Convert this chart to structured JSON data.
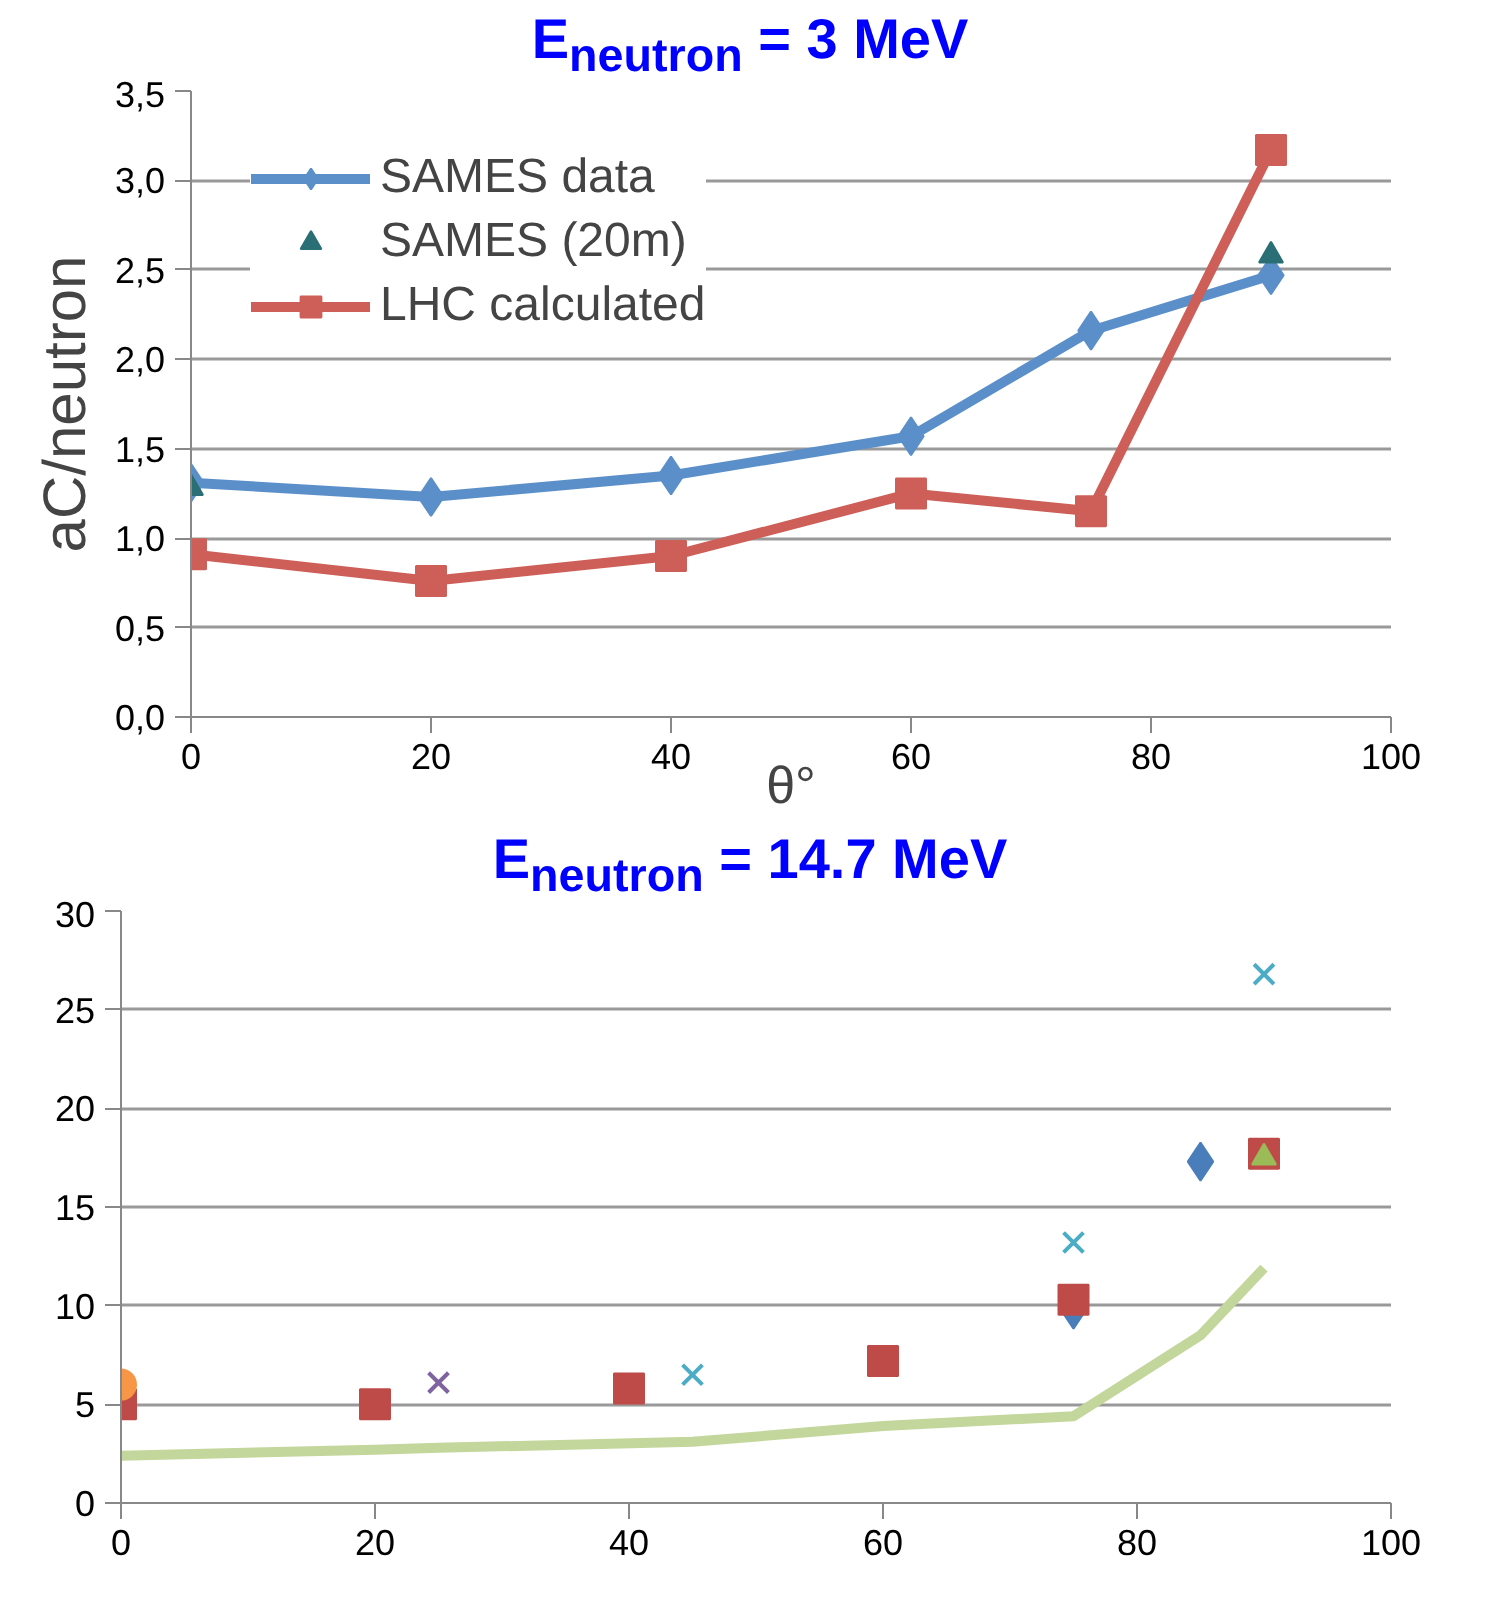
{
  "chart_data": [
    {
      "type": "line",
      "title": "E$_{neutron}$ = 3 MeV",
      "xlabel": "θ°",
      "ylabel": "aC/neutron",
      "xlim": [
        0,
        100
      ],
      "xticks": [
        0,
        20,
        40,
        60,
        80,
        100
      ],
      "ylim": [
        0,
        3.5
      ],
      "yticks": [
        {
          "value": 0,
          "label": "0,0"
        },
        {
          "value": 0.5,
          "label": "0,5"
        },
        {
          "value": 1,
          "label": "1,0"
        },
        {
          "value": 1.5,
          "label": "1,5"
        },
        {
          "value": 2,
          "label": "2,0"
        },
        {
          "value": 2.5,
          "label": "2,5"
        },
        {
          "value": 3,
          "label": "3,0"
        },
        {
          "value": 3.5,
          "label": "3,5"
        }
      ],
      "grid": "y",
      "legend": "top left",
      "series": [
        {
          "name": "SAMES data",
          "marker": "diamond",
          "color": "#5b8fc9",
          "x": [
            0,
            20,
            40,
            60,
            75,
            90
          ],
          "values": [
            1.31,
            1.23,
            1.35,
            1.57,
            2.16,
            2.47
          ]
        },
        {
          "name": "SAMES (20m)",
          "type": "scatter",
          "marker": "triangle",
          "color": "#2a6f75",
          "x": [
            0,
            90
          ],
          "values": [
            1.28,
            2.58
          ]
        },
        {
          "name": "LHC calculated",
          "marker": "square",
          "color": "#cd5f58",
          "x": [
            0,
            20,
            40,
            60,
            75,
            90
          ],
          "values": [
            0.91,
            0.76,
            0.9,
            1.25,
            1.15,
            3.17
          ]
        }
      ]
    },
    {
      "type": "scatter",
      "title": "E$_{neutron}$ = 14.7 MeV",
      "xlim": [
        0,
        100
      ],
      "xticks": [
        0,
        20,
        40,
        60,
        80,
        100
      ],
      "ylim": [
        0,
        30
      ],
      "yticks": [
        0,
        5,
        10,
        15,
        20,
        25,
        30
      ],
      "grid": "y",
      "series": [
        {
          "type": "line",
          "marker": "none",
          "color": "#c3d69b",
          "x": [
            0,
            20,
            25,
            45,
            60,
            75,
            85,
            90
          ],
          "values": [
            2.4,
            2.7,
            2.8,
            3.1,
            3.9,
            4.4,
            8.5,
            11.9
          ]
        },
        {
          "marker": "diamond",
          "color": "#4a7ebb",
          "x": [
            75,
            85
          ],
          "values": [
            9.8,
            17.3
          ]
        },
        {
          "marker": "square",
          "color": "#be4b48",
          "x": [
            0,
            20,
            40,
            60,
            75,
            90
          ],
          "values": [
            5.0,
            5.0,
            5.8,
            7.2,
            10.3,
            17.7
          ]
        },
        {
          "marker": "cross",
          "color": "#7f63a0",
          "x": [
            25
          ],
          "values": [
            6.1
          ]
        },
        {
          "marker": "cross",
          "color": "#4bacc6",
          "x": [
            45,
            75,
            90
          ],
          "values": [
            6.5,
            13.2,
            26.8
          ]
        },
        {
          "marker": "triangle",
          "color": "#9bbb59",
          "x": [
            90
          ],
          "values": [
            17.5
          ]
        },
        {
          "marker": "circle",
          "color": "#f79646",
          "x": [
            0
          ],
          "values": [
            6.0
          ]
        }
      ]
    }
  ]
}
